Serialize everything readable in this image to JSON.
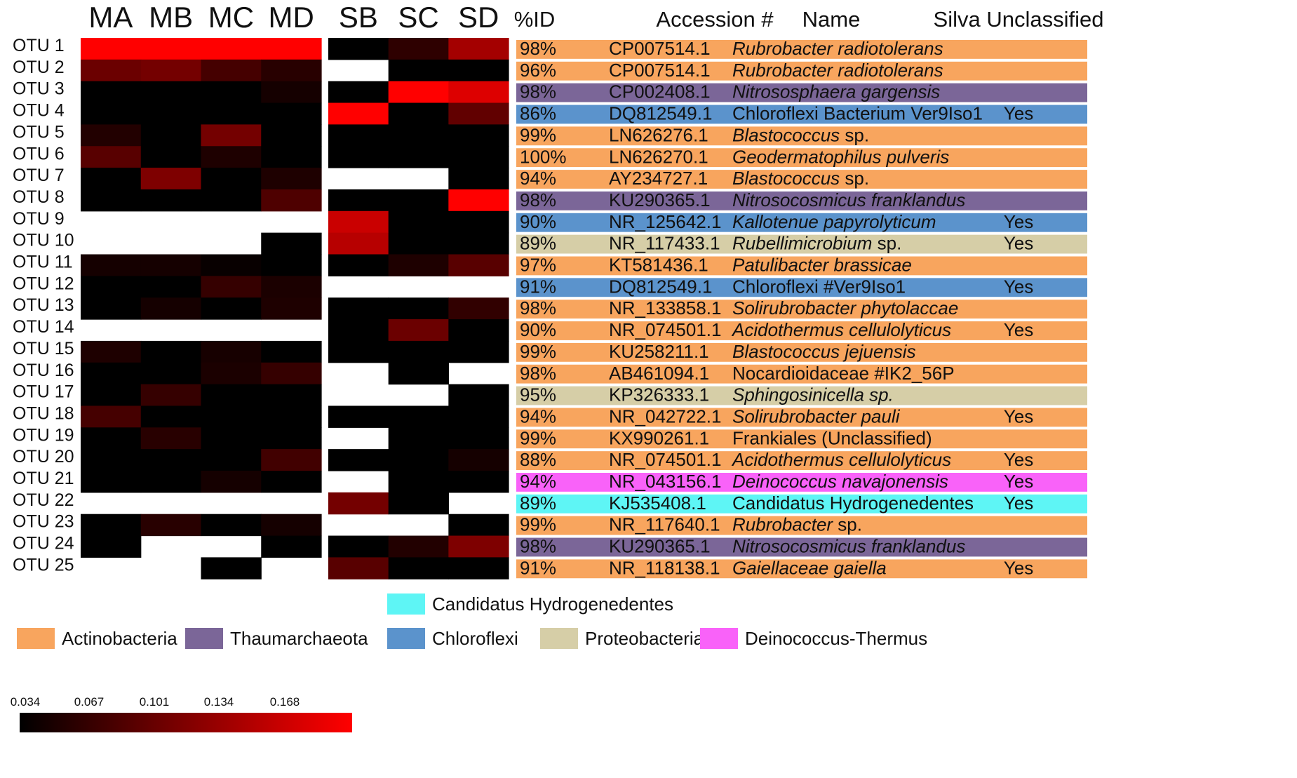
{
  "chart_data": {
    "type": "heatmap",
    "title": "",
    "xlabel": "",
    "ylabel": "",
    "rows": [
      "OTU 1",
      "OTU 2",
      "OTU 3",
      "OTU 4",
      "OTU 5",
      "OTU 6",
      "OTU 7",
      "OTU 8",
      "OTU 9",
      "OTU 10",
      "OTU 11",
      "OTU 12",
      "OTU 13",
      "OTU 14",
      "OTU 15",
      "OTU 16",
      "OTU 17",
      "OTU 18",
      "OTU 19",
      "OTU 20",
      "OTU 21",
      "OTU 22",
      "OTU 23",
      "OTU 24",
      "OTU 25"
    ],
    "groups": [
      {
        "columns": [
          "MA",
          "MB",
          "MC",
          "MD"
        ],
        "values": [
          [
            0.168,
            0.168,
            0.168,
            0.168
          ],
          [
            0.09,
            0.095,
            0.07,
            0.055
          ],
          [
            0.034,
            0.034,
            0.034,
            0.045
          ],
          [
            0.034,
            0.034,
            0.034,
            0.034
          ],
          [
            0.052,
            0.034,
            0.095,
            0.034
          ],
          [
            0.08,
            0.034,
            0.05,
            0.034
          ],
          [
            0.034,
            0.1,
            0.034,
            0.05
          ],
          [
            0.034,
            0.034,
            0.034,
            0.075
          ],
          [
            null,
            null,
            null,
            null
          ],
          [
            null,
            null,
            null,
            0.034
          ],
          [
            0.045,
            0.045,
            0.038,
            0.034
          ],
          [
            0.034,
            0.034,
            0.062,
            0.048
          ],
          [
            0.034,
            0.045,
            0.034,
            0.05
          ],
          [
            null,
            null,
            null,
            null
          ],
          [
            0.05,
            0.034,
            0.046,
            0.034
          ],
          [
            0.034,
            0.034,
            0.048,
            0.062
          ],
          [
            0.034,
            0.062,
            0.034,
            0.034
          ],
          [
            0.07,
            0.034,
            0.034,
            0.034
          ],
          [
            0.034,
            0.055,
            0.034,
            0.034
          ],
          [
            0.034,
            0.034,
            0.034,
            0.068
          ],
          [
            0.034,
            0.034,
            0.045,
            0.034
          ],
          [
            null,
            null,
            null,
            null
          ],
          [
            0.034,
            0.055,
            0.034,
            0.045
          ],
          [
            0.034,
            null,
            null,
            0.034
          ],
          [
            null,
            null,
            0.034,
            null
          ]
        ]
      },
      {
        "columns": [
          "SB",
          "SC",
          "SD"
        ],
        "values": [
          [
            0.034,
            0.058,
            0.12
          ],
          [
            null,
            0.034,
            0.034
          ],
          [
            0.034,
            0.168,
            0.15
          ],
          [
            0.168,
            0.034,
            0.085
          ],
          [
            0.034,
            0.034,
            0.034
          ],
          [
            0.034,
            0.034,
            0.034
          ],
          [
            null,
            null,
            0.034
          ],
          [
            0.034,
            0.034,
            0.168
          ],
          [
            0.14,
            0.034,
            0.034
          ],
          [
            0.13,
            0.034,
            0.034
          ],
          [
            0.034,
            0.05,
            0.08
          ],
          [
            null,
            null,
            null
          ],
          [
            0.034,
            0.034,
            0.06
          ],
          [
            0.034,
            0.09,
            0.034
          ],
          [
            0.034,
            0.034,
            0.034
          ],
          [
            null,
            0.034,
            null
          ],
          [
            null,
            null,
            0.034
          ],
          [
            0.034,
            0.034,
            0.034
          ],
          [
            null,
            0.034,
            0.034
          ],
          [
            0.034,
            0.034,
            0.045
          ],
          [
            null,
            0.034,
            0.034
          ],
          [
            0.095,
            0.034,
            null
          ],
          [
            null,
            null,
            0.034
          ],
          [
            0.034,
            0.052,
            0.1
          ],
          [
            0.08,
            0.034,
            0.034
          ]
        ]
      }
    ],
    "scale": {
      "min": 0.034,
      "max": 0.168,
      "colors": [
        "#000000",
        "#ff0000"
      ],
      "ticks": [
        "0.034",
        "0.067",
        "0.101",
        "0.134",
        "0.168"
      ]
    }
  },
  "table": {
    "headers": {
      "pid": "%ID",
      "accession": "Accession #",
      "name": "Name",
      "silva": "Silva Unclassified"
    },
    "rows": [
      {
        "pid": "98%",
        "accession": "CP007514.1",
        "name": "Rubrobacter radiotolerans",
        "italic": true,
        "silva": "",
        "phylum": "Actinobacteria"
      },
      {
        "pid": "96%",
        "accession": "CP007514.1",
        "name": "Rubrobacter radiotolerans",
        "italic": true,
        "silva": "",
        "phylum": "Actinobacteria"
      },
      {
        "pid": "98%",
        "accession": "CP002408.1",
        "name": "Nitrososphaera gargensis",
        "italic": true,
        "silva": "",
        "phylum": "Thaumarchaeota"
      },
      {
        "pid": "86%",
        "accession": "DQ812549.1",
        "name": "Chloroflexi Bacterium Ver9Iso1",
        "italic": false,
        "silva": "Yes",
        "phylum": "Chloroflexi"
      },
      {
        "pid": "99%",
        "accession": "LN626276.1",
        "name": "Blastococcus",
        "suffix": " sp.",
        "italic": true,
        "silva": "",
        "phylum": "Actinobacteria"
      },
      {
        "pid": "100%",
        "accession": "LN626270.1",
        "name": "Geodermatophilus pulveris",
        "italic": true,
        "silva": "",
        "phylum": "Actinobacteria"
      },
      {
        "pid": "94%",
        "accession": "AY234727.1",
        "name": "Blastococcus",
        "suffix": " sp.",
        "italic": true,
        "silva": "",
        "phylum": "Actinobacteria"
      },
      {
        "pid": "98%",
        "accession": "KU290365.1",
        "name": "Nitrosocosmicus franklandus",
        "italic": true,
        "silva": "",
        "phylum": "Thaumarchaeota"
      },
      {
        "pid": "90%",
        "accession": "NR_125642.1",
        "name": "Kallotenue papyrolyticum",
        "italic": true,
        "silva": "Yes",
        "phylum": "Chloroflexi"
      },
      {
        "pid": "89%",
        "accession": "NR_117433.1",
        "name": "Rubellimicrobium",
        "suffix": " sp.",
        "italic": true,
        "silva": "Yes",
        "phylum": "Proteobacteria"
      },
      {
        "pid": "97%",
        "accession": "KT581436.1",
        "name": "Patulibacter brassicae",
        "italic": true,
        "silva": "",
        "phylum": "Actinobacteria"
      },
      {
        "pid": "91%",
        "accession": "DQ812549.1",
        "name": "Chloroflexi #Ver9Iso1",
        "italic": false,
        "silva": "Yes",
        "phylum": "Chloroflexi"
      },
      {
        "pid": "98%",
        "accession": "NR_133858.1",
        "name": "Solirubrobacter phytolaccae",
        "italic": true,
        "silva": "",
        "phylum": "Actinobacteria"
      },
      {
        "pid": "90%",
        "accession": "NR_074501.1",
        "name": "Acidothermus cellulolyticus",
        "italic": true,
        "silva": "Yes",
        "phylum": "Actinobacteria"
      },
      {
        "pid": "99%",
        "accession": "KU258211.1",
        "name": "Blastococcus jejuensis",
        "italic": true,
        "silva": "",
        "phylum": "Actinobacteria"
      },
      {
        "pid": "98%",
        "accession": "AB461094.1",
        "name": "Nocardioidaceae #IK2_56P",
        "italic": false,
        "silva": "",
        "phylum": "Actinobacteria"
      },
      {
        "pid": "95%",
        "accession": "KP326333.1",
        "name": "Sphingosinicella sp.",
        "italic": true,
        "silva": "",
        "phylum": "Proteobacteria"
      },
      {
        "pid": "94%",
        "accession": "NR_042722.1",
        "name": "Solirubrobacter pauli",
        "italic": true,
        "silva": "Yes",
        "phylum": "Actinobacteria"
      },
      {
        "pid": "99%",
        "accession": "KX990261.1",
        "name": "Frankiales (Unclassified)",
        "italic": false,
        "silva": "",
        "phylum": "Actinobacteria"
      },
      {
        "pid": "88%",
        "accession": "NR_074501.1",
        "name": "Acidothermus cellulolyticus",
        "italic": true,
        "silva": "Yes",
        "phylum": "Actinobacteria"
      },
      {
        "pid": "94%",
        "accession": "NR_043156.1",
        "name": "Deinococcus navajonensis",
        "italic": true,
        "silva": "Yes",
        "phylum": "Deinococcus-Thermus"
      },
      {
        "pid": "89%",
        "accession": "KJ535408.1",
        "name": "Candidatus Hydrogenedentes",
        "italic": false,
        "silva": "Yes",
        "phylum": "Candidatus Hydrogenedentes"
      },
      {
        "pid": "99%",
        "accession": "NR_117640.1",
        "name": "Rubrobacter",
        "suffix": " sp.",
        "italic": true,
        "silva": "",
        "phylum": "Actinobacteria"
      },
      {
        "pid": "98%",
        "accession": "KU290365.1",
        "name": "Nitrosocosmicus franklandus",
        "italic": true,
        "silva": "",
        "phylum": "Thaumarchaeota"
      },
      {
        "pid": "91%",
        "accession": "NR_118138.1",
        "name": "Gaiellaceae gaiella",
        "italic": true,
        "silva": "Yes",
        "phylum": "Actinobacteria"
      }
    ]
  },
  "phylum_colors": {
    "Actinobacteria": "#f8a55e",
    "Thaumarchaeota": "#7b6698",
    "Chloroflexi": "#5b93cc",
    "Proteobacteria": "#d6cea7",
    "Deinococcus-Thermus": "#f962f9",
    "Candidatus Hydrogenedentes": "#5ef5f5"
  },
  "legend": [
    {
      "label": "Candidatus Hydrogenedentes",
      "color": "#5ef5f5"
    },
    {
      "label": "Actinobacteria",
      "color": "#f8a55e"
    },
    {
      "label": "Thaumarchaeota",
      "color": "#7b6698"
    },
    {
      "label": "Chloroflexi",
      "color": "#5b93cc"
    },
    {
      "label": "Proteobacteria",
      "color": "#d6cea7"
    },
    {
      "label": "Deinococcus-Thermus",
      "color": "#f962f9"
    }
  ]
}
